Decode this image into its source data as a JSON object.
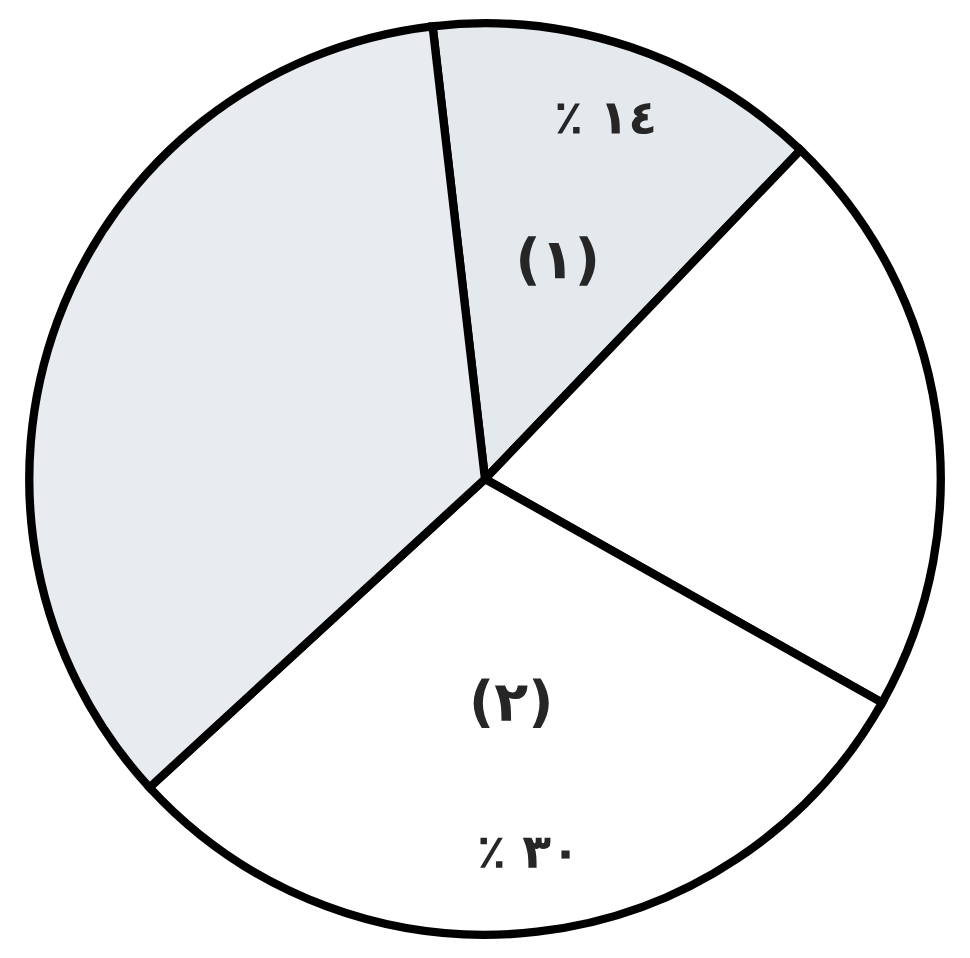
{
  "chart_data": {
    "type": "pie",
    "categories": [
      "(١)",
      null,
      "(٢)",
      null
    ],
    "values": [
      14,
      21,
      30,
      35
    ],
    "value_labels": [
      "٪ ١٤",
      null,
      "٪ ٣٠",
      null
    ],
    "colors": [
      "#e4e9ee",
      "#ffffff",
      "#ffffff",
      "#e8ecf0"
    ]
  }
}
